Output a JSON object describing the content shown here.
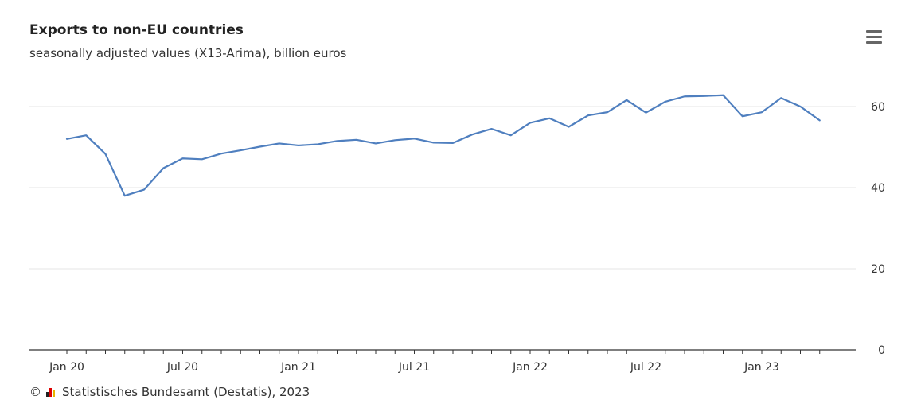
{
  "title": "Exports to non-EU countries",
  "subtitle": "seasonally adjusted values (X13-Arima), billion euros",
  "credit": "Statistisches Bundesamt (Destatis), 2023",
  "copyright_symbol": "©",
  "menu_icon": "hamburger-menu-icon",
  "colors": {
    "line": "#4f7fbf",
    "grid": "#e6e6e6",
    "axis": "#333333"
  },
  "chart_data": {
    "type": "line",
    "title": "Exports to non-EU countries",
    "subtitle": "seasonally adjusted values (X13-Arima), billion euros",
    "xlabel": "",
    "ylabel": "",
    "ylim": [
      0,
      70
    ],
    "yticks": [
      0,
      20,
      40,
      60
    ],
    "y_axis_position": "right",
    "grid": true,
    "legend": "none",
    "x": [
      "2020-01",
      "2020-02",
      "2020-03",
      "2020-04",
      "2020-05",
      "2020-06",
      "2020-07",
      "2020-08",
      "2020-09",
      "2020-10",
      "2020-11",
      "2020-12",
      "2021-01",
      "2021-02",
      "2021-03",
      "2021-04",
      "2021-05",
      "2021-06",
      "2021-07",
      "2021-08",
      "2021-09",
      "2021-10",
      "2021-11",
      "2021-12",
      "2022-01",
      "2022-02",
      "2022-03",
      "2022-04",
      "2022-05",
      "2022-06",
      "2022-07",
      "2022-08",
      "2022-09",
      "2022-10",
      "2022-11",
      "2022-12",
      "2023-01",
      "2023-02",
      "2023-03",
      "2023-04"
    ],
    "xtick_labels": [
      {
        "x": "2020-01",
        "label": "Jan 20"
      },
      {
        "x": "2020-07",
        "label": "Jul 20"
      },
      {
        "x": "2021-01",
        "label": "Jan 21"
      },
      {
        "x": "2021-07",
        "label": "Jul 21"
      },
      {
        "x": "2022-01",
        "label": "Jan 22"
      },
      {
        "x": "2022-07",
        "label": "Jul 22"
      },
      {
        "x": "2023-01",
        "label": "Jan 23"
      }
    ],
    "series": [
      {
        "values": [
          52.0,
          52.9,
          48.3,
          38.0,
          39.5,
          44.8,
          47.2,
          47.0,
          48.4,
          49.2,
          50.1,
          50.9,
          50.4,
          50.7,
          51.5,
          51.8,
          50.9,
          51.7,
          52.1,
          51.1,
          51.0,
          53.1,
          54.5,
          52.9,
          56.0,
          57.1,
          55.0,
          57.8,
          58.6,
          61.6,
          58.5,
          61.2,
          62.5,
          62.6,
          62.8,
          57.6,
          58.6,
          62.1,
          60.0,
          56.6
        ]
      }
    ]
  }
}
